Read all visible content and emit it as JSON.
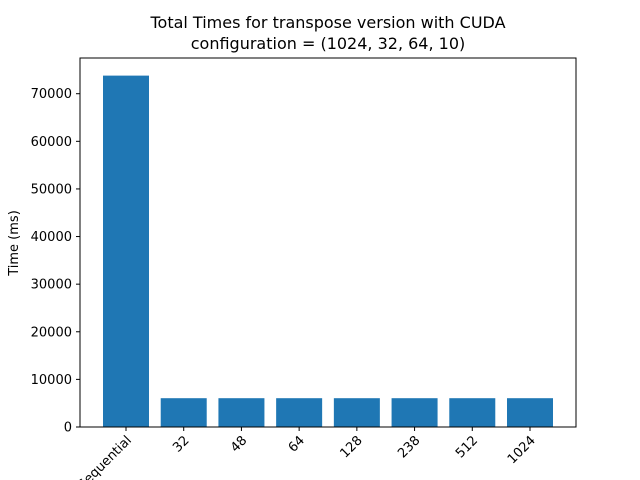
{
  "chart_data": {
    "type": "bar",
    "title_line1": "Total Times for transpose version with CUDA",
    "title_line2": "configuration = (1024, 32, 64, 10)",
    "xlabel": "",
    "ylabel": "Time (ms)",
    "categories": [
      "Sequential",
      "32",
      "48",
      "64",
      "128",
      "238",
      "512",
      "1024"
    ],
    "values": [
      73800,
      6050,
      6050,
      6050,
      6050,
      6050,
      6050,
      6050
    ],
    "ylim": [
      0,
      77500
    ],
    "yticks": [
      0,
      10000,
      20000,
      30000,
      40000,
      50000,
      60000,
      70000
    ],
    "bar_color": "#1f77b4",
    "grid": false,
    "legend": "none"
  }
}
